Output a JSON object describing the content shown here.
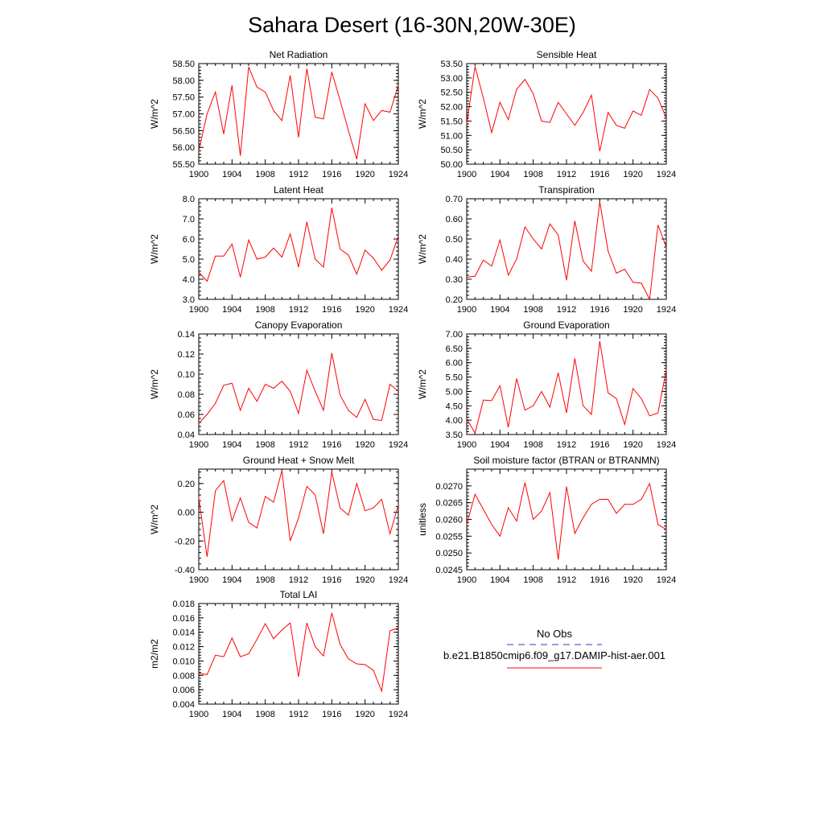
{
  "title": "Sahara Desert (16-30N,20W-30E)",
  "chart_data": [
    {
      "type": "line",
      "title": "Net Radiation",
      "ylabel": "W/m^2",
      "xlim": [
        1900,
        1924
      ],
      "ylim": [
        55.5,
        58.5
      ],
      "xticks": [
        "1900",
        "1904",
        "1908",
        "1912",
        "1916",
        "1920",
        "1924"
      ],
      "yticks": [
        "55.50",
        "56.00",
        "56.50",
        "57.00",
        "57.50",
        "58.00",
        "58.50"
      ],
      "x": [
        1900,
        1901,
        1902,
        1903,
        1904,
        1905,
        1906,
        1907,
        1908,
        1909,
        1910,
        1911,
        1912,
        1913,
        1914,
        1915,
        1916,
        1917,
        1918,
        1919,
        1920,
        1921,
        1922,
        1923,
        1924
      ],
      "series": [
        {
          "name": "b.e21.B1850cmip6.f09_g17.DAMIP-hist-aer.001",
          "values": [
            55.9,
            57.0,
            57.65,
            56.4,
            57.85,
            55.75,
            58.4,
            57.8,
            57.65,
            57.1,
            56.8,
            58.15,
            56.3,
            58.35,
            56.9,
            56.85,
            58.25,
            57.4,
            56.5,
            55.65,
            57.3,
            56.8,
            57.1,
            57.05,
            57.85
          ]
        }
      ]
    },
    {
      "type": "line",
      "title": "Sensible Heat",
      "ylabel": "W/m^2",
      "xlim": [
        1900,
        1924
      ],
      "ylim": [
        50.0,
        53.5
      ],
      "xticks": [
        "1900",
        "1904",
        "1908",
        "1912",
        "1916",
        "1920",
        "1924"
      ],
      "yticks": [
        "50.00",
        "50.50",
        "51.00",
        "51.50",
        "52.00",
        "52.50",
        "53.00",
        "53.50"
      ],
      "x": [
        1900,
        1901,
        1902,
        1903,
        1904,
        1905,
        1906,
        1907,
        1908,
        1909,
        1910,
        1911,
        1912,
        1913,
        1914,
        1915,
        1916,
        1917,
        1918,
        1919,
        1920,
        1921,
        1922,
        1923,
        1924
      ],
      "series": [
        {
          "name": "b.e21.B1850cmip6.f09_g17.DAMIP-hist-aer.001",
          "values": [
            51.4,
            53.4,
            52.3,
            51.1,
            52.15,
            51.55,
            52.6,
            52.95,
            52.45,
            51.5,
            51.45,
            52.15,
            51.75,
            51.35,
            51.8,
            52.4,
            50.45,
            51.8,
            51.35,
            51.25,
            51.85,
            51.7,
            52.6,
            52.3,
            51.6
          ]
        }
      ]
    },
    {
      "type": "line",
      "title": "Latent Heat",
      "ylabel": "W/m^2",
      "xlim": [
        1900,
        1924
      ],
      "ylim": [
        3.0,
        8.0
      ],
      "xticks": [
        "1900",
        "1904",
        "1908",
        "1912",
        "1916",
        "1920",
        "1924"
      ],
      "yticks": [
        "3.0",
        "4.0",
        "5.0",
        "6.0",
        "7.0",
        "8.0"
      ],
      "x": [
        1900,
        1901,
        1902,
        1903,
        1904,
        1905,
        1906,
        1907,
        1908,
        1909,
        1910,
        1911,
        1912,
        1913,
        1914,
        1915,
        1916,
        1917,
        1918,
        1919,
        1920,
        1921,
        1922,
        1923,
        1924
      ],
      "series": [
        {
          "name": "b.e21.B1850cmip6.f09_g17.DAMIP-hist-aer.001",
          "values": [
            4.35,
            3.9,
            5.15,
            5.15,
            5.75,
            4.1,
            5.95,
            5.0,
            5.1,
            5.55,
            5.1,
            6.25,
            4.6,
            6.85,
            5.0,
            4.6,
            7.55,
            5.5,
            5.2,
            4.25,
            5.45,
            5.05,
            4.45,
            4.95,
            6.15
          ]
        }
      ]
    },
    {
      "type": "line",
      "title": "Transpiration",
      "ylabel": "W/m^2",
      "xlim": [
        1900,
        1924
      ],
      "ylim": [
        0.2,
        0.7
      ],
      "xticks": [
        "1900",
        "1904",
        "1908",
        "1912",
        "1916",
        "1920",
        "1924"
      ],
      "yticks": [
        "0.20",
        "0.30",
        "0.40",
        "0.50",
        "0.60",
        "0.70"
      ],
      "x": [
        1900,
        1901,
        1902,
        1903,
        1904,
        1905,
        1906,
        1907,
        1908,
        1909,
        1910,
        1911,
        1912,
        1913,
        1914,
        1915,
        1916,
        1917,
        1918,
        1919,
        1920,
        1921,
        1922,
        1923,
        1924
      ],
      "series": [
        {
          "name": "b.e21.B1850cmip6.f09_g17.DAMIP-hist-aer.001",
          "values": [
            0.31,
            0.315,
            0.395,
            0.365,
            0.495,
            0.32,
            0.4,
            0.56,
            0.5,
            0.45,
            0.575,
            0.52,
            0.295,
            0.59,
            0.39,
            0.34,
            0.685,
            0.44,
            0.33,
            0.35,
            0.285,
            0.28,
            0.2,
            0.57,
            0.46
          ]
        }
      ]
    },
    {
      "type": "line",
      "title": "Canopy Evaporation",
      "ylabel": "W/m^2",
      "xlim": [
        1900,
        1924
      ],
      "ylim": [
        0.04,
        0.14
      ],
      "xticks": [
        "1900",
        "1904",
        "1908",
        "1912",
        "1916",
        "1920",
        "1924"
      ],
      "yticks": [
        "0.04",
        "0.06",
        "0.08",
        "0.10",
        "0.12",
        "0.14"
      ],
      "x": [
        1900,
        1901,
        1902,
        1903,
        1904,
        1905,
        1906,
        1907,
        1908,
        1909,
        1910,
        1911,
        1912,
        1913,
        1914,
        1915,
        1916,
        1917,
        1918,
        1919,
        1920,
        1921,
        1922,
        1923,
        1924
      ],
      "series": [
        {
          "name": "b.e21.B1850cmip6.f09_g17.DAMIP-hist-aer.001",
          "values": [
            0.051,
            0.06,
            0.071,
            0.089,
            0.091,
            0.064,
            0.086,
            0.073,
            0.09,
            0.086,
            0.093,
            0.083,
            0.061,
            0.104,
            0.083,
            0.064,
            0.121,
            0.079,
            0.064,
            0.057,
            0.075,
            0.055,
            0.054,
            0.09,
            0.083
          ]
        }
      ]
    },
    {
      "type": "line",
      "title": "Ground Evaporation",
      "ylabel": "W/m^2",
      "xlim": [
        1900,
        1924
      ],
      "ylim": [
        3.5,
        7.0
      ],
      "xticks": [
        "1900",
        "1904",
        "1908",
        "1912",
        "1916",
        "1920",
        "1924"
      ],
      "yticks": [
        "3.50",
        "4.00",
        "4.50",
        "5.00",
        "5.50",
        "6.00",
        "6.50",
        "7.00"
      ],
      "x": [
        1900,
        1901,
        1902,
        1903,
        1904,
        1905,
        1906,
        1907,
        1908,
        1909,
        1910,
        1911,
        1912,
        1913,
        1914,
        1915,
        1916,
        1917,
        1918,
        1919,
        1920,
        1921,
        1922,
        1923,
        1924
      ],
      "series": [
        {
          "name": "b.e21.B1850cmip6.f09_g17.DAMIP-hist-aer.001",
          "values": [
            4.05,
            3.55,
            4.7,
            4.68,
            5.2,
            3.75,
            5.45,
            4.35,
            4.5,
            5.0,
            4.45,
            5.65,
            4.25,
            6.15,
            4.5,
            4.2,
            6.75,
            4.95,
            4.75,
            3.85,
            5.1,
            4.75,
            4.15,
            4.25,
            5.75
          ]
        }
      ]
    },
    {
      "type": "line",
      "title": "Ground Heat + Snow Melt",
      "ylabel": "W/m^2",
      "xlim": [
        1900,
        1924
      ],
      "ylim": [
        -0.4,
        0.3
      ],
      "xticks": [
        "1900",
        "1904",
        "1908",
        "1912",
        "1916",
        "1920",
        "1924"
      ],
      "yticks": [
        "-0.40",
        "-0.20",
        "0.00",
        "0.20"
      ],
      "yticks_values": [
        -0.4,
        -0.2,
        0.0,
        0.2
      ],
      "x": [
        1900,
        1901,
        1902,
        1903,
        1904,
        1905,
        1906,
        1907,
        1908,
        1909,
        1910,
        1911,
        1912,
        1913,
        1914,
        1915,
        1916,
        1917,
        1918,
        1919,
        1920,
        1921,
        1922,
        1923,
        1924
      ],
      "series": [
        {
          "name": "b.e21.B1850cmip6.f09_g17.DAMIP-hist-aer.001",
          "values": [
            0.1,
            -0.31,
            0.15,
            0.22,
            -0.06,
            0.1,
            -0.07,
            -0.11,
            0.11,
            0.07,
            0.29,
            -0.2,
            -0.04,
            0.18,
            0.12,
            -0.15,
            0.28,
            0.03,
            -0.02,
            0.2,
            0.01,
            0.03,
            0.09,
            -0.15,
            0.05
          ]
        }
      ]
    },
    {
      "type": "line",
      "title": "Soil moisture factor (BTRAN or BTRANMN)",
      "ylabel": "unitless",
      "xlim": [
        1900,
        1924
      ],
      "ylim": [
        0.0245,
        0.0275
      ],
      "xticks": [
        "1900",
        "1904",
        "1908",
        "1912",
        "1916",
        "1920",
        "1924"
      ],
      "yticks": [
        "0.0245",
        "0.0250",
        "0.0255",
        "0.0260",
        "0.0265",
        "0.0270"
      ],
      "x": [
        1900,
        1901,
        1902,
        1903,
        1904,
        1905,
        1906,
        1907,
        1908,
        1909,
        1910,
        1911,
        1912,
        1913,
        1914,
        1915,
        1916,
        1917,
        1918,
        1919,
        1920,
        1921,
        1922,
        1923,
        1924
      ],
      "series": [
        {
          "name": "b.e21.B1850cmip6.f09_g17.DAMIP-hist-aer.001",
          "values": [
            0.02585,
            0.02675,
            0.0263,
            0.02585,
            0.0255,
            0.02635,
            0.02595,
            0.0271,
            0.026,
            0.02625,
            0.0268,
            0.0248,
            0.02698,
            0.02558,
            0.02605,
            0.02645,
            0.0266,
            0.0266,
            0.02618,
            0.02645,
            0.02645,
            0.0266,
            0.02707,
            0.02585,
            0.0257
          ]
        }
      ]
    },
    {
      "type": "line",
      "title": "Total LAI",
      "ylabel": "m2/m2",
      "xlim": [
        1900,
        1924
      ],
      "ylim": [
        0.004,
        0.018
      ],
      "xticks": [
        "1900",
        "1904",
        "1908",
        "1912",
        "1916",
        "1920",
        "1924"
      ],
      "yticks": [
        "0.004",
        "0.006",
        "0.008",
        "0.010",
        "0.012",
        "0.014",
        "0.016",
        "0.018"
      ],
      "x": [
        1900,
        1901,
        1902,
        1903,
        1904,
        1905,
        1906,
        1907,
        1908,
        1909,
        1910,
        1911,
        1912,
        1913,
        1914,
        1915,
        1916,
        1917,
        1918,
        1919,
        1920,
        1921,
        1922,
        1923,
        1924
      ],
      "series": [
        {
          "name": "b.e21.B1850cmip6.f09_g17.DAMIP-hist-aer.001",
          "values": [
            0.0083,
            0.0081,
            0.0108,
            0.0106,
            0.0132,
            0.0106,
            0.011,
            0.013,
            0.0152,
            0.0131,
            0.0143,
            0.0153,
            0.0078,
            0.0153,
            0.012,
            0.0107,
            0.0167,
            0.0123,
            0.0103,
            0.0096,
            0.0095,
            0.0087,
            0.0058,
            0.0142,
            0.0146
          ]
        }
      ]
    }
  ],
  "legend": {
    "obs_label": "No Obs",
    "obs_color": "#3333cc",
    "model_label": "b.e21.B1850cmip6.f09_g17.DAMIP-hist-aer.001",
    "model_color": "#ff0000"
  },
  "colors": {
    "line": "#ff0000",
    "axis": "#000000"
  }
}
